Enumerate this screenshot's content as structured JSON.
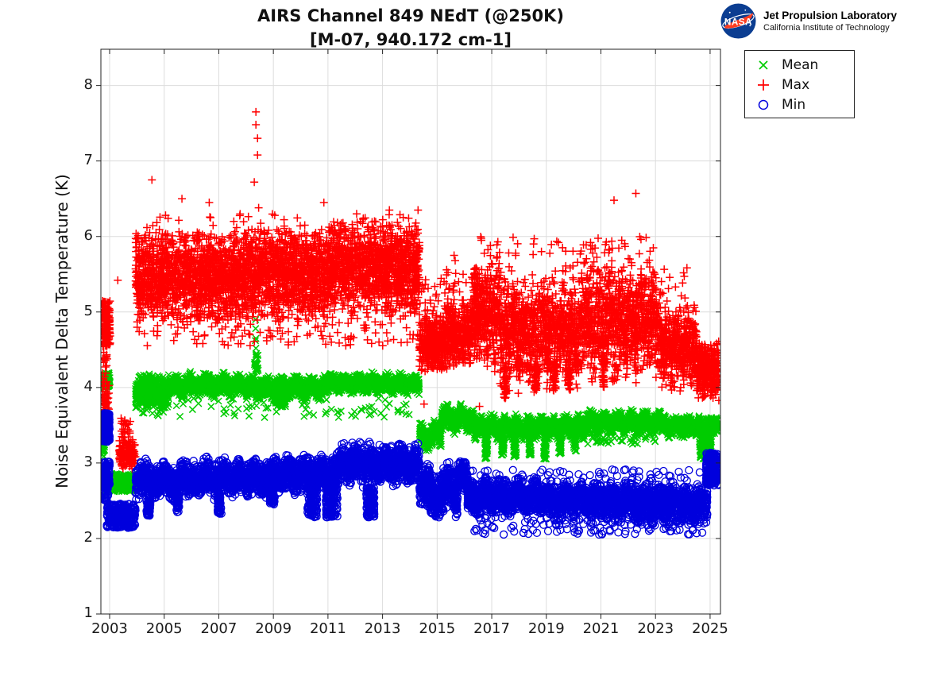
{
  "header": {
    "nasa_text": "NASA",
    "jpl_name": "Jet Propulsion Laboratory",
    "jpl_sub": "California Institute of Technology"
  },
  "legend": {
    "position": "outside-top-right",
    "items": [
      "Mean",
      "Max",
      "Min"
    ]
  },
  "chart_data": {
    "type": "scatter",
    "title": "AIRS Channel 849 NEdT (@250K)",
    "subtitle": "[M-07, 940.172 cm-1]",
    "xlabel": "",
    "ylabel": "Noise Equivalent Delta Temperature (K)",
    "xlim": [
      2002.68,
      2025.38
    ],
    "ylim": [
      1,
      8.48
    ],
    "x_ticks": [
      2003,
      2005,
      2007,
      2009,
      2011,
      2013,
      2015,
      2017,
      2019,
      2021,
      2023,
      2025
    ],
    "y_ticks": [
      1,
      2,
      3,
      4,
      5,
      6,
      7,
      8
    ],
    "grid": true,
    "axis_color": "#222222",
    "grid_color": "#dcdcdc",
    "bands_format": "[tStart, tEnd, nPoints, vLow, vHigh, dist(0=triangular,1=uniform), wobbleAmp, wobblePeriodYears]",
    "series": [
      {
        "name": "Mean",
        "marker": "x",
        "color": "#00CC00",
        "bands": [
          [
            2002.72,
            2003.02,
            110,
            4.0,
            4.2,
            1
          ],
          [
            2002.72,
            2002.82,
            30,
            3.08,
            3.3,
            1
          ],
          [
            2002.8,
            2003.9,
            230,
            2.62,
            2.86,
            1
          ],
          [
            2003.95,
            2005.2,
            420,
            3.72,
            4.2,
            0
          ],
          [
            2005.2,
            2008.0,
            900,
            3.88,
            4.18,
            0,
            0.04,
            0.6
          ],
          [
            2008.0,
            2011.0,
            950,
            3.85,
            4.15,
            0,
            0.04,
            0.55
          ],
          [
            2009.05,
            2009.45,
            120,
            3.72,
            3.95,
            0
          ],
          [
            2011.0,
            2014.35,
            1050,
            3.92,
            4.18,
            0,
            0.04,
            0.5
          ],
          [
            2004.2,
            2014.3,
            90,
            3.6,
            3.86,
            1
          ],
          [
            2008.3,
            2008.45,
            20,
            4.2,
            4.45,
            1
          ],
          [
            2014.35,
            2015.15,
            260,
            3.2,
            3.52,
            0,
            0.07,
            0.6
          ],
          [
            2015.15,
            2016.35,
            380,
            3.42,
            3.75,
            0,
            0.06,
            0.55
          ],
          [
            2016.35,
            2020.4,
            1250,
            3.32,
            3.62,
            0,
            0.05,
            0.45
          ],
          [
            2016.75,
            2016.85,
            45,
            3.05,
            3.35,
            1
          ],
          [
            2017.35,
            2017.45,
            40,
            3.1,
            3.38,
            1
          ],
          [
            2017.8,
            2017.9,
            40,
            3.08,
            3.35,
            1
          ],
          [
            2018.35,
            2018.45,
            40,
            3.1,
            3.4,
            1
          ],
          [
            2018.9,
            2019.0,
            40,
            3.05,
            3.35,
            1
          ],
          [
            2019.45,
            2019.55,
            35,
            3.12,
            3.4,
            1
          ],
          [
            2020.0,
            2020.1,
            30,
            3.15,
            3.42,
            1
          ],
          [
            2020.4,
            2023.2,
            900,
            3.4,
            3.68,
            0,
            0.04,
            0.5
          ],
          [
            2020.5,
            2023.0,
            60,
            3.25,
            3.42,
            1
          ],
          [
            2023.2,
            2024.6,
            450,
            3.35,
            3.62,
            0,
            0.04,
            0.45
          ],
          [
            2024.6,
            2025.05,
            220,
            3.05,
            3.6,
            1
          ],
          [
            2025.0,
            2025.3,
            110,
            3.38,
            3.62,
            0
          ]
        ],
        "outliers": [
          [
            2008.35,
            4.9
          ],
          [
            2008.35,
            4.78
          ],
          [
            2008.36,
            4.65
          ],
          [
            2008.36,
            4.52
          ],
          [
            2008.37,
            4.4
          ],
          [
            2008.37,
            4.3
          ],
          [
            2008.34,
            4.62
          ],
          [
            2008.38,
            4.45
          ]
        ]
      },
      {
        "name": "Max",
        "marker": "+",
        "color": "#FF0000",
        "bands": [
          [
            2002.72,
            2003.02,
            160,
            4.55,
            5.15,
            1
          ],
          [
            2002.72,
            2002.98,
            55,
            3.65,
            4.08,
            1
          ],
          [
            2002.74,
            2002.92,
            18,
            4.1,
            4.55,
            1
          ],
          [
            2003.35,
            2003.95,
            150,
            2.92,
            3.32,
            0
          ],
          [
            2003.4,
            2003.8,
            25,
            3.32,
            3.6,
            1
          ],
          [
            2003.95,
            2005.0,
            420,
            4.85,
            6.05,
            0
          ],
          [
            2005.0,
            2008.0,
            1150,
            4.8,
            6.1,
            0
          ],
          [
            2008.0,
            2011.0,
            1150,
            4.85,
            6.15,
            0
          ],
          [
            2011.0,
            2014.35,
            1300,
            4.9,
            6.25,
            0
          ],
          [
            2004.0,
            2014.35,
            130,
            4.55,
            4.95,
            1
          ],
          [
            2004.0,
            2014.35,
            60,
            6.0,
            6.3,
            1
          ],
          [
            2014.35,
            2015.2,
            330,
            4.15,
            5.0,
            0
          ],
          [
            2014.35,
            2015.2,
            20,
            5.0,
            5.45,
            1
          ],
          [
            2015.2,
            2016.25,
            380,
            4.2,
            5.15,
            0
          ],
          [
            2015.2,
            2016.25,
            25,
            5.1,
            5.6,
            1
          ],
          [
            2016.25,
            2017.3,
            430,
            4.25,
            5.7,
            0,
            0.1,
            0.3
          ],
          [
            2017.3,
            2020.3,
            1100,
            4.0,
            5.45,
            0,
            0.12,
            0.35
          ],
          [
            2020.3,
            2023.2,
            1050,
            4.1,
            5.6,
            0,
            0.12,
            0.4
          ],
          [
            2023.2,
            2024.5,
            470,
            3.95,
            5.1,
            0,
            0.1,
            0.35
          ],
          [
            2024.5,
            2025.32,
            330,
            3.82,
            4.62,
            0
          ],
          [
            2016.3,
            2023.2,
            80,
            5.4,
            6.0,
            1
          ],
          [
            2020.4,
            2021.6,
            18,
            5.5,
            5.95,
            1
          ],
          [
            2023.2,
            2024.2,
            15,
            5.05,
            5.6,
            1
          ],
          [
            2017.45,
            2017.55,
            40,
            3.85,
            4.3,
            1
          ],
          [
            2018.55,
            2018.65,
            35,
            3.9,
            4.3,
            1
          ],
          [
            2019.25,
            2019.35,
            35,
            3.95,
            4.35,
            1
          ],
          [
            2019.8,
            2019.9,
            30,
            3.95,
            4.3,
            1
          ],
          [
            2021.05,
            2021.12,
            30,
            4.0,
            4.4,
            1
          ]
        ],
        "outliers": [
          [
            2003.3,
            5.42
          ],
          [
            2004.55,
            6.75
          ],
          [
            2005.05,
            6.28
          ],
          [
            2005.65,
            6.5
          ],
          [
            2006.65,
            6.45
          ],
          [
            2007.55,
            6.2
          ],
          [
            2008.3,
            6.72
          ],
          [
            2008.36,
            7.65
          ],
          [
            2008.36,
            7.48
          ],
          [
            2008.42,
            7.3
          ],
          [
            2008.42,
            7.08
          ],
          [
            2008.46,
            6.38
          ],
          [
            2009.05,
            6.28
          ],
          [
            2010.15,
            6.15
          ],
          [
            2010.85,
            6.45
          ],
          [
            2011.55,
            6.18
          ],
          [
            2012.05,
            6.3
          ],
          [
            2013.25,
            6.35
          ],
          [
            2014.3,
            6.35
          ],
          [
            2014.52,
            3.78
          ],
          [
            2015.62,
            5.75
          ],
          [
            2015.66,
            5.68
          ],
          [
            2016.55,
            3.75
          ],
          [
            2016.62,
            5.95
          ],
          [
            2016.95,
            5.88
          ],
          [
            2020.62,
            5.92
          ],
          [
            2021.48,
            6.48
          ],
          [
            2022.28,
            6.57
          ],
          [
            2022.92,
            5.85
          ]
        ]
      },
      {
        "name": "Min",
        "marker": "o",
        "color": "#0000DD",
        "bands": [
          [
            2002.74,
            2003.0,
            150,
            3.28,
            3.66,
            1
          ],
          [
            2002.74,
            2003.0,
            120,
            2.68,
            3.02,
            1
          ],
          [
            2002.78,
            2002.95,
            40,
            2.5,
            2.7,
            1
          ],
          [
            2002.9,
            2003.95,
            300,
            2.14,
            2.46,
            1
          ],
          [
            2003.95,
            2006.0,
            700,
            2.52,
            3.02,
            0,
            0.05,
            0.7
          ],
          [
            2006.0,
            2009.0,
            1050,
            2.55,
            3.05,
            0,
            0.05,
            0.6
          ],
          [
            2009.0,
            2011.4,
            850,
            2.6,
            3.1,
            0,
            0.05,
            0.6
          ],
          [
            2011.4,
            2014.35,
            1050,
            2.72,
            3.22,
            0,
            0.05,
            0.55
          ],
          [
            2004.35,
            2004.5,
            60,
            2.3,
            2.6,
            1
          ],
          [
            2005.45,
            2005.55,
            40,
            2.35,
            2.6,
            1
          ],
          [
            2006.95,
            2007.1,
            55,
            2.3,
            2.62,
            1
          ],
          [
            2008.85,
            2009.05,
            50,
            2.45,
            2.7,
            1
          ],
          [
            2010.25,
            2010.6,
            130,
            2.28,
            2.72,
            1
          ],
          [
            2010.9,
            2011.35,
            150,
            2.28,
            2.75,
            1
          ],
          [
            2012.4,
            2012.7,
            130,
            2.28,
            2.68,
            1
          ],
          [
            2011.5,
            2014.3,
            60,
            3.1,
            3.28,
            1
          ],
          [
            2014.35,
            2015.75,
            520,
            2.3,
            2.95,
            0,
            0.1,
            0.8
          ],
          [
            2015.75,
            2016.1,
            140,
            2.6,
            3.05,
            0
          ],
          [
            2016.1,
            2019.0,
            1000,
            2.3,
            2.8,
            0,
            0.05,
            0.6
          ],
          [
            2019.0,
            2022.0,
            1050,
            2.25,
            2.75,
            0,
            0.05,
            0.55
          ],
          [
            2022.0,
            2024.9,
            1000,
            2.2,
            2.72,
            0,
            0.05,
            0.5
          ],
          [
            2016.3,
            2024.8,
            140,
            2.05,
            2.3,
            1
          ],
          [
            2016.2,
            2024.8,
            70,
            2.75,
            2.92,
            1
          ],
          [
            2024.85,
            2025.32,
            220,
            2.7,
            3.14,
            1
          ]
        ],
        "outliers": []
      }
    ]
  }
}
